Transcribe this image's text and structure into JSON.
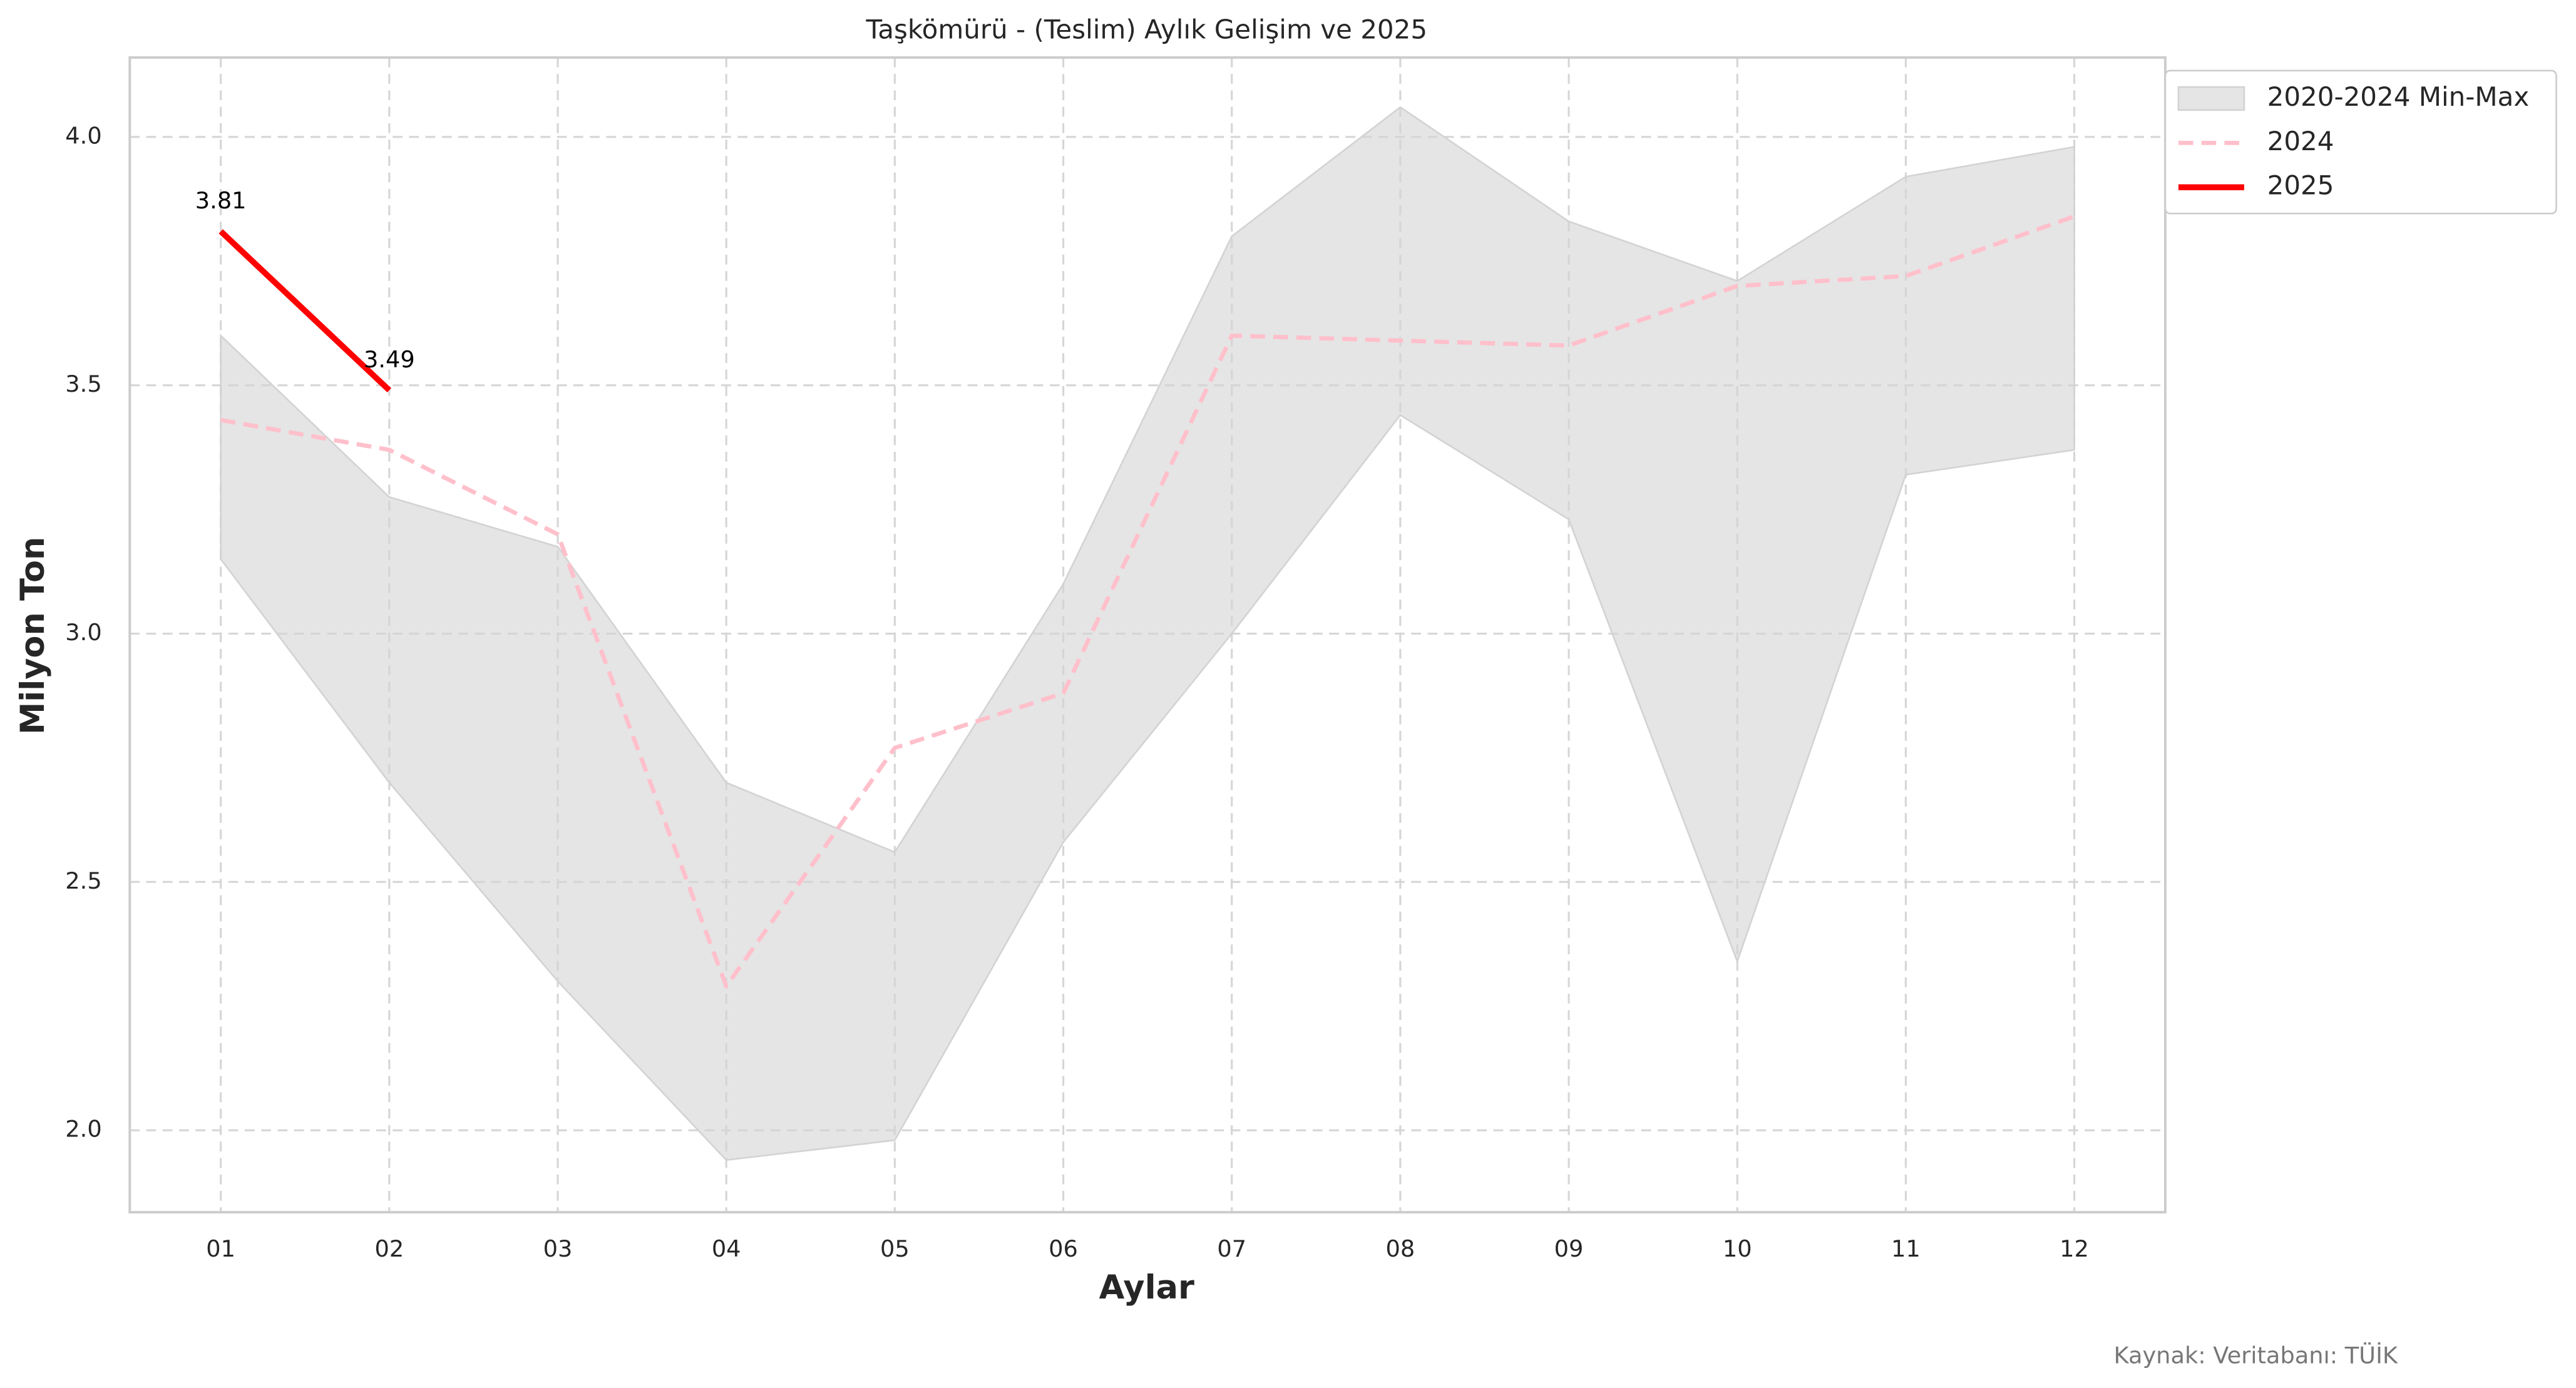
{
  "chart_data": {
    "type": "line",
    "title": "Taşkömürü - (Teslim) Aylık Gelişim ve 2025",
    "x_label": "Aylar",
    "y_label": "Milyon Ton",
    "source": "Kaynak: Veritabanı: TÜİK",
    "categories": [
      "01",
      "02",
      "03",
      "04",
      "05",
      "06",
      "07",
      "08",
      "09",
      "10",
      "11",
      "12"
    ],
    "band": {
      "name": "2020-2024 Min-Max",
      "color": "#d3d3d3",
      "lower": [
        3.15,
        2.7,
        2.3,
        1.94,
        1.98,
        2.58,
        3.0,
        3.44,
        3.23,
        2.34,
        3.32,
        3.37
      ],
      "upper": [
        3.6,
        3.275,
        3.175,
        2.7,
        2.56,
        3.1,
        3.8,
        4.06,
        3.83,
        3.71,
        3.92,
        3.98
      ]
    },
    "series": [
      {
        "name": "2024",
        "color": "#ffc0cb",
        "dashed": true,
        "values": [
          3.43,
          3.37,
          3.2,
          2.29,
          2.77,
          2.88,
          3.6,
          3.59,
          3.58,
          3.7,
          3.72,
          3.84
        ]
      },
      {
        "name": "2025",
        "color": "#ff0000",
        "dashed": false,
        "show_value_labels": true,
        "values": [
          3.81,
          3.49,
          null,
          null,
          null,
          null,
          null,
          null,
          null,
          null,
          null,
          null
        ]
      }
    ],
    "ylim": [
      1.835,
      4.16
    ],
    "yticks": [
      {
        "value": 2.0,
        "label": "2.0"
      },
      {
        "value": 2.5,
        "label": "2.5"
      },
      {
        "value": 3.0,
        "label": "3.0"
      },
      {
        "value": 3.5,
        "label": "3.5"
      },
      {
        "value": 4.0,
        "label": "4.0"
      }
    ],
    "grid": true,
    "legend": "upper right outside"
  }
}
